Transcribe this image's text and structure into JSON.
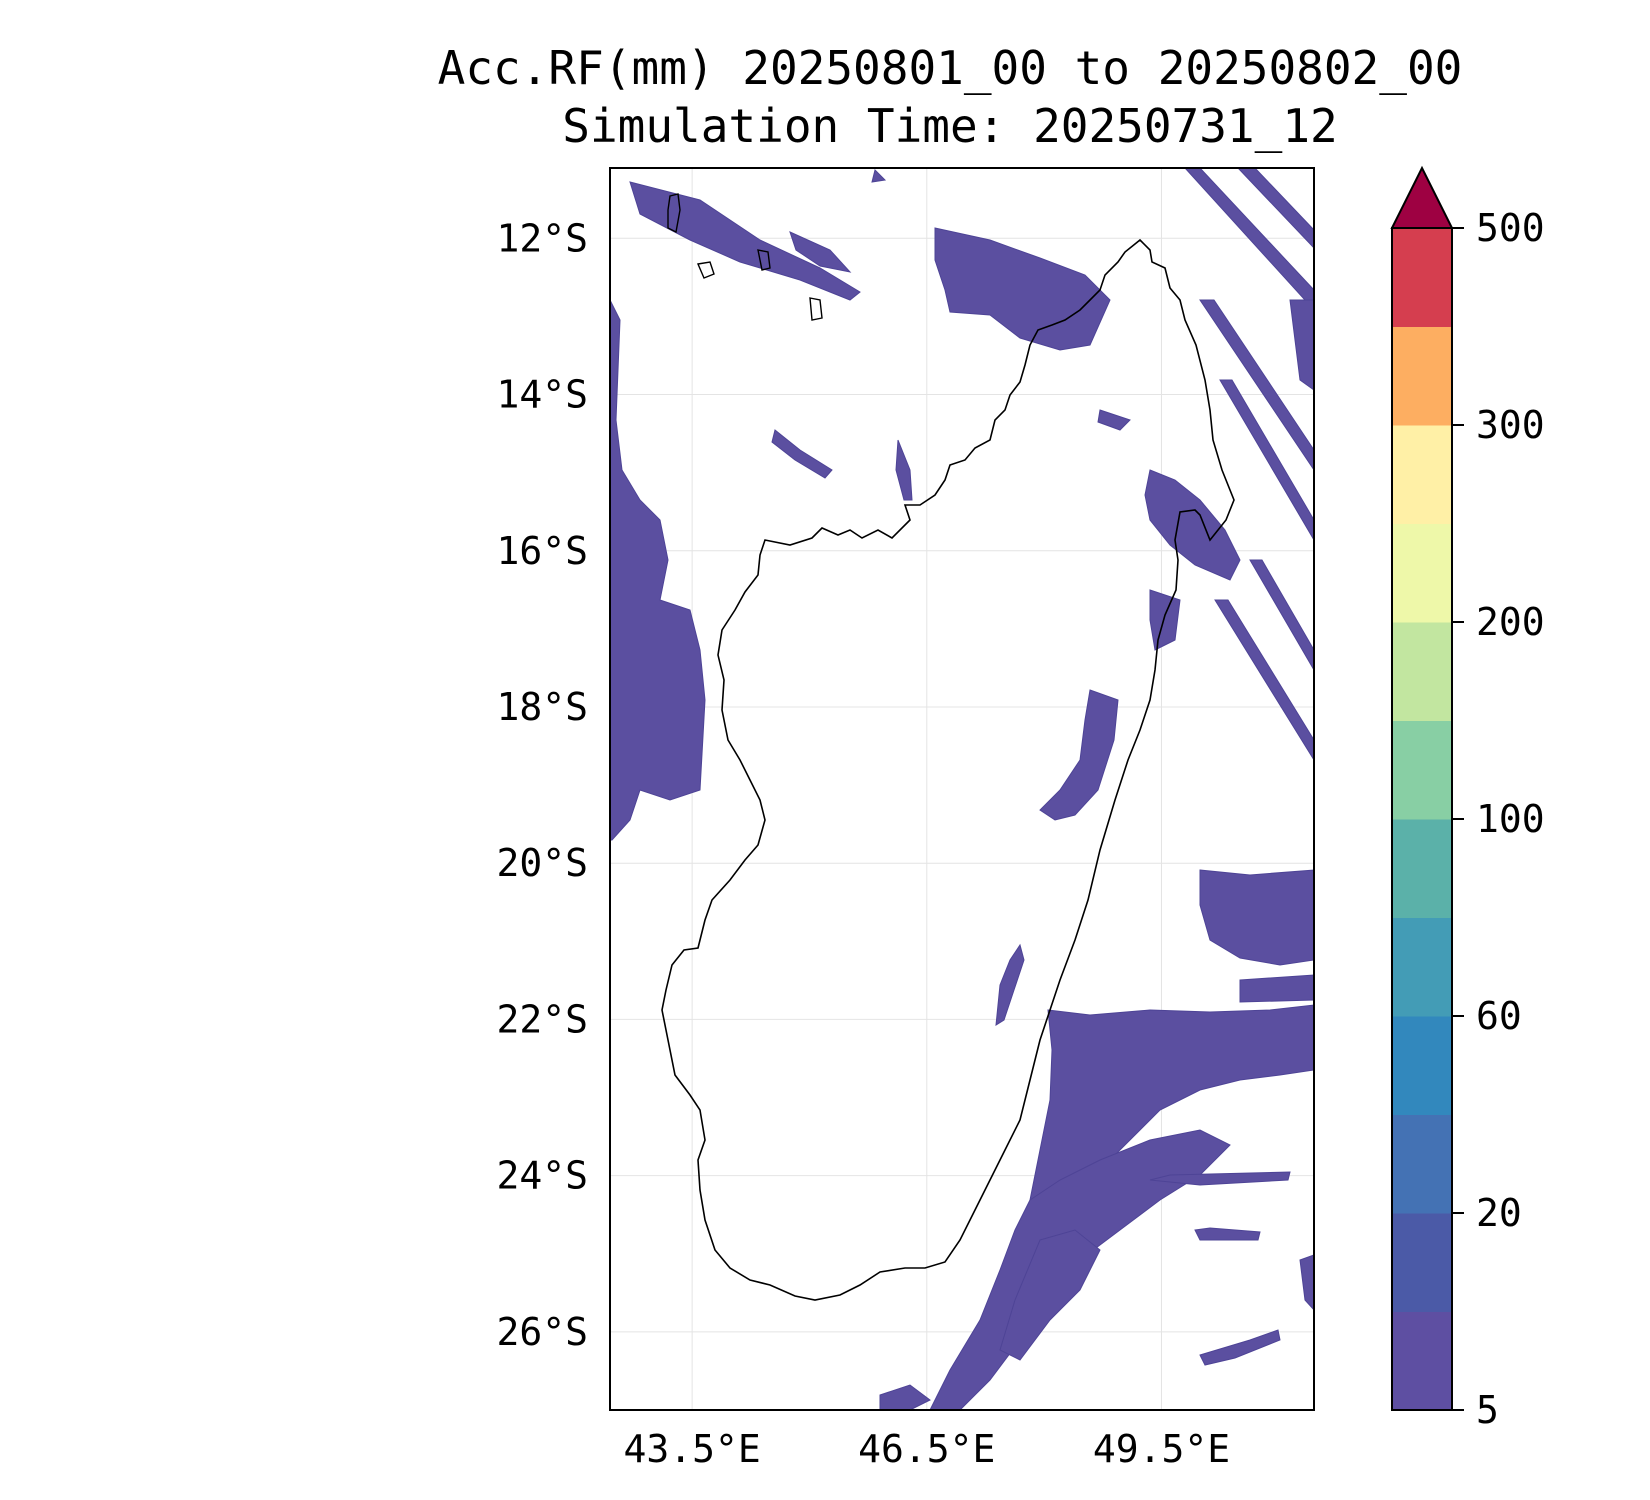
{
  "title": {
    "line1": "Acc.RF(mm) 20250801_00 to 20250802_00",
    "line2": "Simulation Time: 20250731_12"
  },
  "map": {
    "lon_ticks": [
      "43.5°E",
      "46.5°E",
      "49.5°E"
    ],
    "lat_ticks": [
      "12°S",
      "14°S",
      "16°S",
      "18°S",
      "20°S",
      "22°S",
      "24°S",
      "26°S"
    ],
    "lon_range": [
      42.45,
      51.45
    ],
    "lat_range": [
      -27.0,
      -11.1
    ],
    "gridlines": true
  },
  "colorbar": {
    "label_values": [
      "500",
      "300",
      "200",
      "100",
      "60",
      "20",
      "5"
    ],
    "extend": "max",
    "extend_color": "#9e0142",
    "colors_bottom_to_top": [
      "#5e4fa2",
      "#4b5aa7",
      "#4472b4",
      "#3288bd",
      "#439cb6",
      "#5bb1a9",
      "#88cfa4",
      "#c2e6a0",
      "#eef8a9",
      "#fff0a6",
      "#fdae61",
      "#d53e4f"
    ]
  },
  "legend_colorbar_order": "bottom-to-top"
}
